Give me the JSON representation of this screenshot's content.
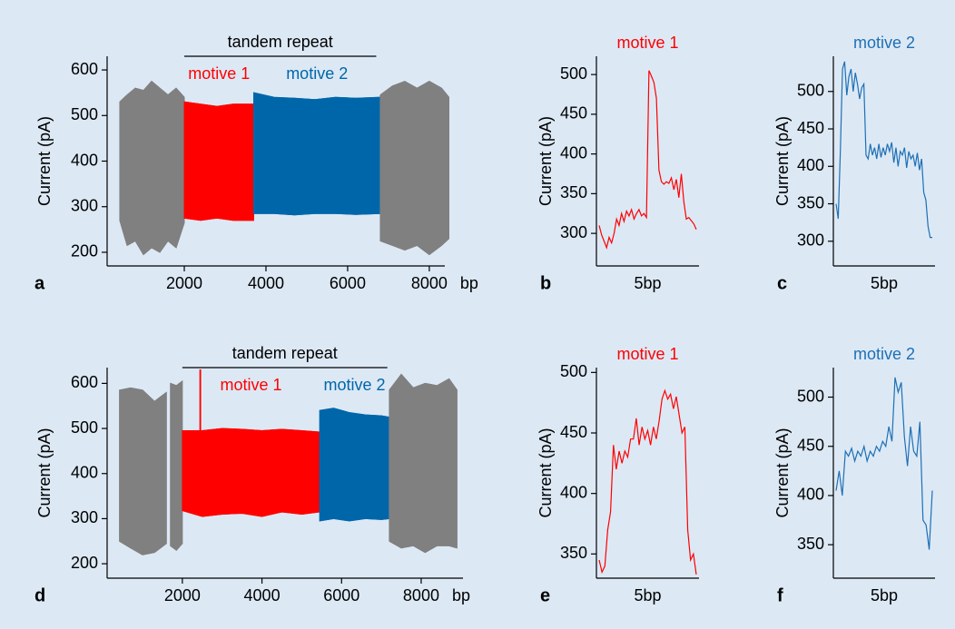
{
  "chart_data": [
    {
      "type": "signal",
      "label": "a",
      "ylabel": "Current (pA)",
      "xlabel": "bp",
      "xlim": [
        110,
        8380
      ],
      "xticks": [
        2000,
        4000,
        6000,
        8000
      ],
      "ylim": [
        170,
        630
      ],
      "yticks": [
        200,
        300,
        400,
        500,
        600
      ],
      "annotation": {
        "text": "tandem repeat",
        "x": [
          2000,
          6700
        ]
      },
      "segments": [
        {
          "color": "#808080",
          "x": [
            420,
            600,
            800,
            1000,
            1200,
            1400,
            1600,
            1800,
            2000
          ],
          "high": [
            530,
            545,
            560,
            555,
            575,
            560,
            545,
            560,
            540
          ],
          "low": [
            270,
            215,
            225,
            195,
            210,
            200,
            225,
            210,
            265
          ]
        },
        {
          "name": "motive 1",
          "color": "#ff0000",
          "x": [
            2000,
            2400,
            2800,
            3200,
            3700
          ],
          "high": [
            530,
            525,
            520,
            525,
            525
          ],
          "low": [
            275,
            270,
            275,
            270,
            270
          ]
        },
        {
          "name": "motive 2",
          "color": "#0066aa",
          "x": [
            3700,
            4200,
            4700,
            5200,
            5700,
            6200,
            6800
          ],
          "high": [
            550,
            540,
            538,
            535,
            540,
            538,
            540
          ],
          "low": [
            285,
            285,
            282,
            285,
            285,
            283,
            285
          ]
        },
        {
          "color": "#808080",
          "x": [
            6800,
            7100,
            7400,
            7700,
            8000,
            8300,
            8480
          ],
          "high": [
            545,
            565,
            575,
            560,
            575,
            560,
            540
          ],
          "low": [
            225,
            215,
            205,
            215,
            195,
            215,
            230
          ]
        }
      ]
    },
    {
      "type": "line",
      "label": "b",
      "title": "motive 1",
      "color": "#ff0000",
      "ylabel": "Current (pA)",
      "xlabel": "5bp",
      "ylim": [
        259,
        523
      ],
      "yticks": [
        300,
        350,
        400,
        450,
        500
      ],
      "values": [
        310,
        298,
        290,
        282,
        295,
        288,
        300,
        318,
        310,
        325,
        315,
        328,
        322,
        330,
        318,
        325,
        330,
        322,
        325,
        320,
        505,
        498,
        490,
        470,
        380,
        365,
        362,
        365,
        363,
        370,
        355,
        368,
        345,
        375,
        340,
        318,
        320,
        316,
        312,
        305
      ]
    },
    {
      "type": "line",
      "label": "c",
      "title": "motive 2",
      "color": "#1f6fb4",
      "ylabel": "Current (pA)",
      "xlabel": "5bp",
      "ylim": [
        267,
        547
      ],
      "yticks": [
        300,
        350,
        400,
        450,
        500
      ],
      "values": [
        350,
        330,
        420,
        530,
        540,
        495,
        520,
        530,
        500,
        525,
        510,
        490,
        505,
        510,
        415,
        410,
        430,
        415,
        425,
        410,
        430,
        412,
        425,
        415,
        430,
        420,
        432,
        405,
        425,
        400,
        420,
        415,
        425,
        398,
        420,
        410,
        415,
        400,
        418,
        395,
        410,
        365,
        355,
        320,
        305,
        305
      ]
    },
    {
      "type": "signal",
      "label": "d",
      "ylabel": "Current (pA)",
      "xlabel": "bp",
      "xlim": [
        110,
        9050
      ],
      "xticks": [
        2000,
        4000,
        6000,
        8000
      ],
      "ylim": [
        168,
        635
      ],
      "yticks": [
        200,
        300,
        400,
        500,
        600
      ],
      "annotation": {
        "text": "tandem repeat",
        "x": [
          2000,
          7150
        ]
      },
      "segments": [
        {
          "color": "#808080",
          "x": [
            420,
            700,
            1000,
            1300,
            1600
          ],
          "high": [
            585,
            590,
            585,
            560,
            580
          ],
          "low": [
            250,
            235,
            220,
            225,
            245
          ]
        },
        {
          "color": "#808080",
          "x": [
            1700,
            1850,
            2000
          ],
          "high": [
            600,
            595,
            605
          ],
          "low": [
            240,
            230,
            245
          ]
        },
        {
          "name": "motive 1",
          "color": "#ff0000",
          "x": [
            2000,
            2500,
            3000,
            3500,
            4000,
            4500,
            5000,
            5450
          ],
          "high": [
            495,
            495,
            500,
            498,
            495,
            498,
            495,
            492
          ],
          "low": [
            318,
            305,
            310,
            312,
            305,
            315,
            310,
            315
          ]
        },
        {
          "color": "#ff0000",
          "x": [
            2440,
            2460
          ],
          "high": [
            630,
            630
          ],
          "low": [
            400,
            400
          ]
        },
        {
          "name": "motive 2",
          "color": "#0066aa",
          "x": [
            5450,
            5800,
            6200,
            6600,
            7000,
            7200
          ],
          "high": [
            540,
            545,
            535,
            530,
            528,
            525
          ],
          "low": [
            295,
            300,
            295,
            300,
            298,
            300
          ]
        },
        {
          "color": "#808080",
          "x": [
            7200,
            7500,
            7800,
            8100,
            8400,
            8700,
            8900
          ],
          "high": [
            585,
            620,
            590,
            600,
            595,
            610,
            585
          ],
          "low": [
            250,
            235,
            240,
            225,
            240,
            240,
            235
          ]
        }
      ]
    },
    {
      "type": "line",
      "label": "e",
      "title": "motive 1",
      "color": "#ff0000",
      "ylabel": "Current (pA)",
      "xlabel": "5bp",
      "ylim": [
        330,
        504
      ],
      "yticks": [
        350,
        400,
        450,
        500
      ],
      "values": [
        345,
        335,
        340,
        370,
        385,
        440,
        420,
        435,
        425,
        435,
        430,
        445,
        445,
        462,
        440,
        455,
        445,
        452,
        440,
        455,
        445,
        460,
        478,
        485,
        478,
        482,
        470,
        480,
        465,
        450,
        455,
        370,
        345,
        350,
        333
      ]
    },
    {
      "type": "line",
      "label": "f",
      "title": "motive 2",
      "color": "#1f6fb4",
      "ylabel": "Current (pA)",
      "xlabel": "5bp",
      "ylim": [
        316,
        530
      ],
      "yticks": [
        350,
        400,
        450,
        500
      ],
      "values": [
        405,
        425,
        400,
        445,
        440,
        448,
        435,
        445,
        440,
        450,
        435,
        445,
        440,
        450,
        445,
        455,
        450,
        470,
        455,
        520,
        505,
        515,
        460,
        430,
        470,
        445,
        440,
        475,
        375,
        370,
        345,
        405
      ]
    }
  ]
}
